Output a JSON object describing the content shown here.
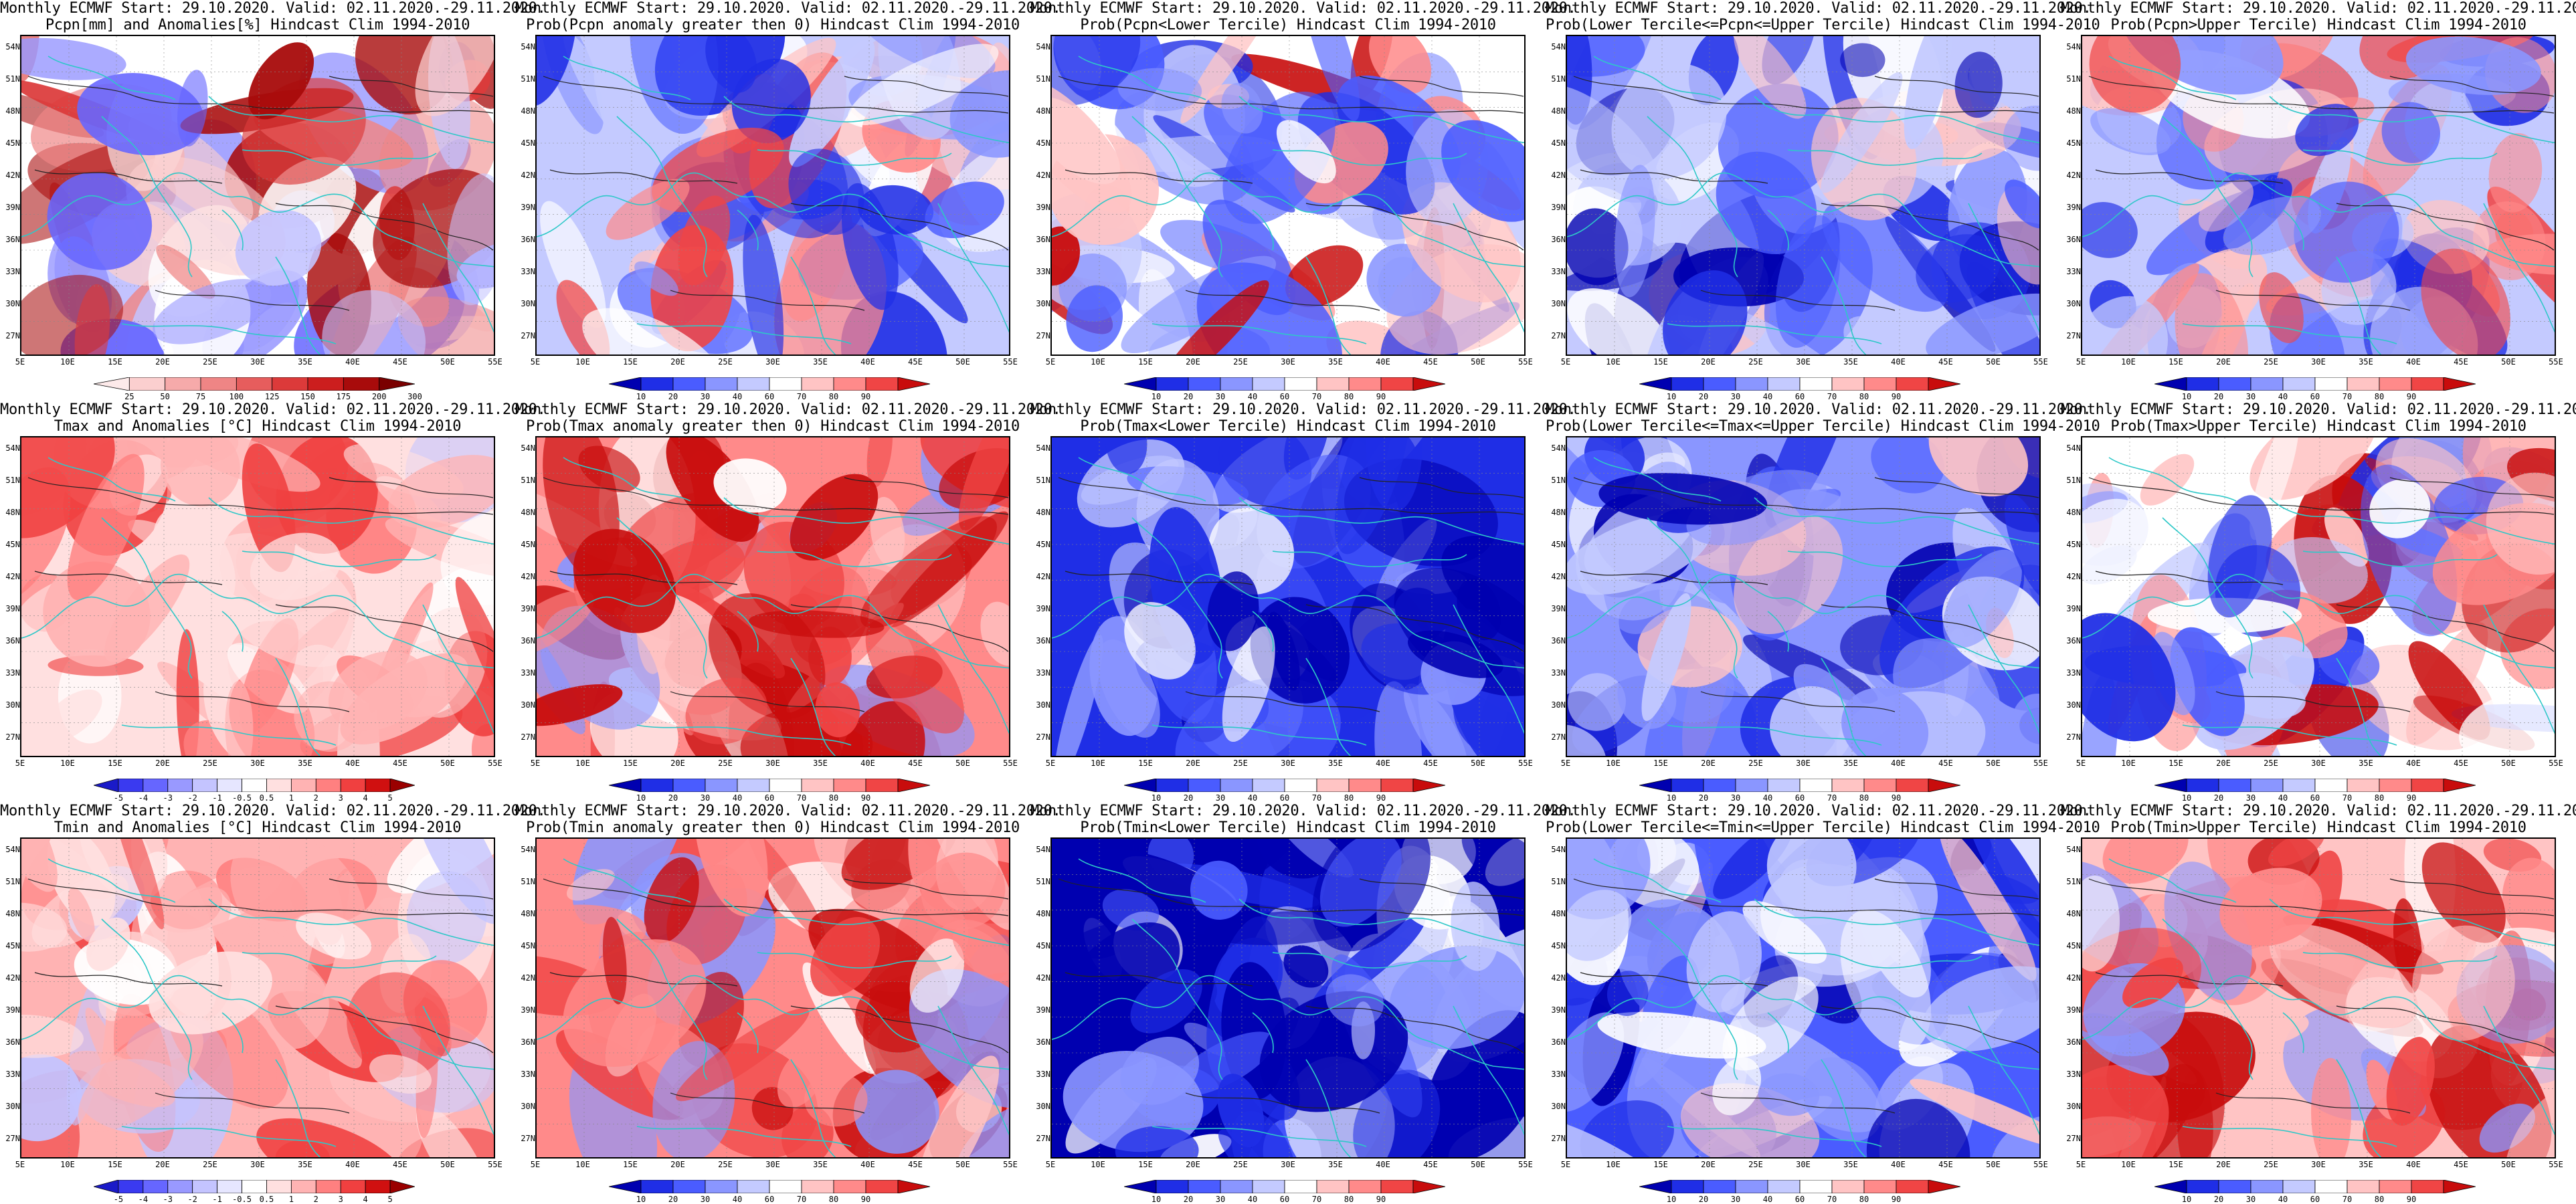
{
  "header_prefix": "Monthly ECMWF Start: 29.10.2020. Valid: 02.11.2020.-29.11.2020.",
  "lat_labels": [
    "54N",
    "51N",
    "48N",
    "45N",
    "42N",
    "39N",
    "36N",
    "33N",
    "30N",
    "27N"
  ],
  "lon_labels": [
    "5E",
    "10E",
    "15E",
    "20E",
    "25E",
    "30E",
    "35E",
    "40E",
    "45E",
    "50E",
    "55E"
  ],
  "colorbars": {
    "pcpn_anom": {
      "labels": [
        "25",
        "50",
        "75",
        "100",
        "125",
        "150",
        "175",
        "200",
        "300"
      ],
      "colors": [
        "#fdeaea",
        "#fbcfcf",
        "#f6aaaa",
        "#ef8585",
        "#e65d5d",
        "#dc3a3a",
        "#cc1e1e",
        "#a80b0b",
        "#7a0000"
      ]
    },
    "temp_anom": {
      "labels": [
        "-5",
        "-4",
        "-3",
        "-2",
        "-1",
        "-0.5",
        "0.5",
        "1",
        "2",
        "3",
        "4",
        "5"
      ],
      "colors": [
        "#1a1ac8",
        "#3a3af0",
        "#6666ff",
        "#9999ff",
        "#c4c4ff",
        "#e6e6ff",
        "#ffffff",
        "#ffe0e0",
        "#ffb3b3",
        "#ff8080",
        "#f04040",
        "#d01010",
        "#9a0000"
      ]
    },
    "prob": {
      "labels": [
        "10",
        "20",
        "30",
        "40",
        "60",
        "70",
        "80",
        "90"
      ],
      "colors": [
        "#0000b0",
        "#1f2ee6",
        "#4a5cff",
        "#8a96ff",
        "#c4caff",
        "#ffffff",
        "#ffc4c4",
        "#ff8a8a",
        "#f04545",
        "#c80c0c"
      ]
    }
  },
  "rows": [
    {
      "panels": [
        {
          "line2": "Pcpn[mm] and Anomalies[%] Hindcast Clim 1994-2010",
          "colorbar": "pcpn_anom",
          "base": "#ffffff",
          "scheme": "mixed_pcpn"
        },
        {
          "line2": "Prob(Pcpn anomaly greater then 0) Hindcast Clim 1994-2010",
          "colorbar": "prob",
          "base": "#c4caff",
          "scheme": "blue_red_mix"
        },
        {
          "line2": "Prob(Pcpn<Lower Tercile) Hindcast Clim 1994-2010",
          "colorbar": "prob",
          "base": "#ffffff",
          "scheme": "red_blue_mix"
        },
        {
          "line2": "Prob(Lower Tercile<=Pcpn<=Upper Tercile) Hindcast Clim 1994-2010",
          "colorbar": "prob",
          "base": "#c4caff",
          "scheme": "blue_mixed"
        },
        {
          "line2": "Prob(Pcpn>Upper Tercile) Hindcast Clim 1994-2010",
          "colorbar": "prob",
          "base": "#c4caff",
          "scheme": "blue_red_mix"
        }
      ]
    },
    {
      "panels": [
        {
          "line2": "Tmax and Anomalies [°C] Hindcast Clim 1994-2010",
          "colorbar": "temp_anom",
          "base": "#ffe0e0",
          "scheme": "light_red"
        },
        {
          "line2": "Prob(Tmax anomaly greater then 0) Hindcast Clim 1994-2010",
          "colorbar": "prob",
          "base": "#ff8a8a",
          "scheme": "red_heavy"
        },
        {
          "line2": "Prob(Tmax<Lower Tercile) Hindcast Clim 1994-2010",
          "colorbar": "prob",
          "base": "#1f2ee6",
          "scheme": "blue_heavy"
        },
        {
          "line2": "Prob(Lower Tercile<=Tmax<=Upper Tercile) Hindcast Clim 1994-2010",
          "colorbar": "prob",
          "base": "#8a96ff",
          "scheme": "blue_mixed"
        },
        {
          "line2": "Prob(Tmax>Upper Tercile) Hindcast Clim 1994-2010",
          "colorbar": "prob",
          "base": "#ffffff",
          "scheme": "red_blue_mix"
        }
      ]
    },
    {
      "panels": [
        {
          "line2": "Tmin and Anomalies [°C] Hindcast Clim 1994-2010",
          "colorbar": "temp_anom",
          "base": "#ffb3b3",
          "scheme": "light_red"
        },
        {
          "line2": "Prob(Tmin anomaly greater then 0) Hindcast Clim 1994-2010",
          "colorbar": "prob",
          "base": "#ff8a8a",
          "scheme": "red_heavy"
        },
        {
          "line2": "Prob(Tmin<Lower Tercile) Hindcast Clim 1994-2010",
          "colorbar": "prob",
          "base": "#0000b0",
          "scheme": "blue_heavy"
        },
        {
          "line2": "Prob(Lower Tercile<=Tmin<=Upper Tercile) Hindcast Clim 1994-2010",
          "colorbar": "prob",
          "base": "#4a5cff",
          "scheme": "blue_mixed"
        },
        {
          "line2": "Prob(Tmin>Upper Tercile) Hindcast Clim 1994-2010",
          "colorbar": "prob",
          "base": "#ffc4c4",
          "scheme": "red_heavy"
        }
      ]
    }
  ]
}
